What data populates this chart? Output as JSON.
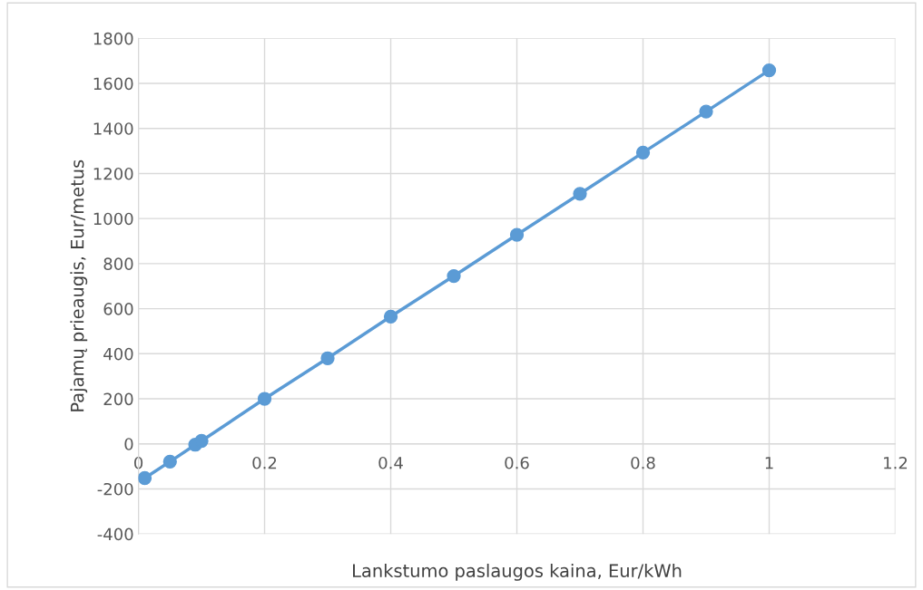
{
  "chart_data": {
    "type": "line",
    "xlabel": "Lankstumo paslaugos kaina, Eur/kWh",
    "ylabel": "Pajamų prieaugis, Eur/metus",
    "x": [
      0.01,
      0.05,
      0.09,
      0.1,
      0.2,
      0.3,
      0.4,
      0.5,
      0.6,
      0.7,
      0.8,
      0.9,
      1.0
    ],
    "series": [
      {
        "color": "#5b9bd5",
        "values": [
          -152,
          -79,
          -4,
          13,
          200,
          380,
          565,
          745,
          928,
          1110,
          1293,
          1475,
          1658
        ]
      }
    ],
    "xlim": [
      0,
      1.2
    ],
    "xticks": [
      0,
      0.2,
      0.4,
      0.6,
      0.8,
      1,
      1.2
    ],
    "ylim": [
      -400,
      1800
    ],
    "yticks": [
      -400,
      -200,
      0,
      200,
      400,
      600,
      800,
      1000,
      1200,
      1400,
      1600,
      1800
    ],
    "grid": true,
    "marker": "circle",
    "line_style": "solid"
  }
}
